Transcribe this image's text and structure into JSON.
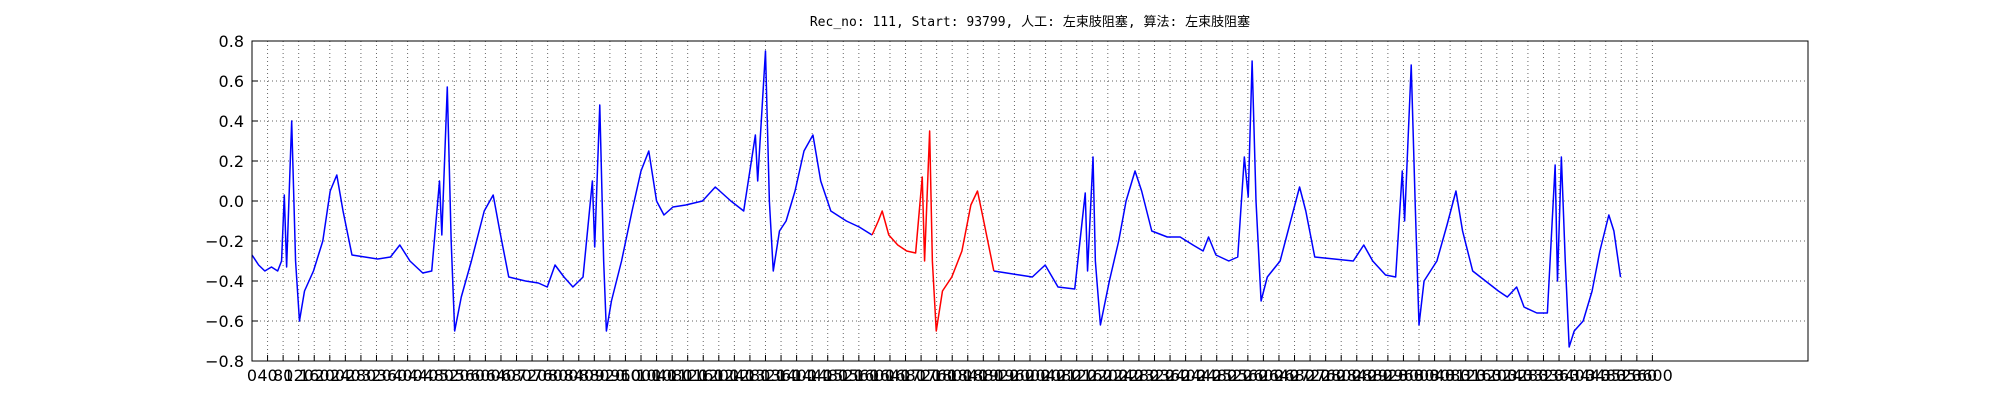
{
  "chart_data": {
    "type": "line",
    "title": "Rec_no: 111, Start: 93799, 人工: 左束肢阻塞, 算法: 左束肢阻塞",
    "xlim": [
      0,
      4000
    ],
    "ylim": [
      -0.8,
      0.8
    ],
    "grid": true,
    "xticks": [
      0,
      40,
      80,
      120,
      160,
      200,
      240,
      280,
      320,
      360,
      400,
      440,
      480,
      520,
      560,
      600,
      640,
      680,
      720,
      760,
      800,
      840,
      880,
      920,
      960,
      1000,
      1040,
      1080,
      1120,
      1160,
      1200,
      1240,
      1280,
      1320,
      1360,
      1400,
      1440,
      1480,
      1520,
      1560,
      1600,
      1640,
      1680,
      1720,
      1760,
      1800,
      1840,
      1880,
      1920,
      1960,
      2000,
      2040,
      2080,
      2120,
      2160,
      2200,
      2240,
      2280,
      2320,
      2360,
      2400,
      2440,
      2480,
      2520,
      2560,
      2600,
      2640,
      2680,
      2720,
      2760,
      2800,
      2840,
      2880,
      2920,
      2960,
      3000,
      3040,
      3080,
      3120,
      3160,
      3200,
      3240,
      3280,
      3320,
      3360,
      3400,
      3440,
      3480,
      3520,
      3560,
      3600
    ],
    "yticks": [
      0.8,
      0.6,
      0.4,
      0.2,
      {
        "value": 0,
        "label": "0.0"
      },
      {
        "value": -0.2,
        "label": "−0.2"
      },
      {
        "value": -0.4,
        "label": "−0.4"
      },
      {
        "value": -0.6,
        "label": "−0.6"
      },
      {
        "value": -0.8,
        "label": "−0.8"
      }
    ],
    "x": [
      0,
      17,
      33,
      50,
      66,
      76,
      83,
      89,
      102,
      112,
      122,
      135,
      158,
      182,
      201,
      218,
      234,
      257,
      290,
      323,
      356,
      380,
      406,
      439,
      462,
      482,
      488,
      502,
      512,
      521,
      538,
      564,
      597,
      620,
      637,
      660,
      703,
      736,
      759,
      779,
      802,
      825,
      851,
      875,
      881,
      894,
      904,
      911,
      924,
      950,
      977,
      1000,
      1020,
      1040,
      1059,
      1082,
      1115,
      1158,
      1191,
      1231,
      1264,
      1294,
      1300,
      1320,
      1330,
      1340,
      1356,
      1373,
      1396,
      1419,
      1442,
      1462,
      1488,
      1528,
      1561,
      1594,
      1610,
      1620,
      1637,
      1660,
      1683,
      1706,
      1723,
      1729,
      1742,
      1749,
      1759,
      1775,
      1799,
      1825,
      1848,
      1865,
      1881,
      1907,
      1940,
      1973,
      2006,
      2039,
      2072,
      2115,
      2142,
      2148,
      2162,
      2168,
      2181,
      2204,
      2228,
      2247,
      2270,
      2287,
      2313,
      2353,
      2386,
      2419,
      2445,
      2459,
      2478,
      2511,
      2534,
      2551,
      2561,
      2571,
      2581,
      2594,
      2610,
      2643,
      2670,
      2693,
      2709,
      2732,
      2782,
      2831,
      2858,
      2881,
      2914,
      2940,
      2957,
      2963,
      2980,
      2990,
      3000,
      3013,
      3046,
      3072,
      3095,
      3112,
      3138,
      3171,
      3204,
      3227,
      3251,
      3270,
      3303,
      3330,
      3350,
      3356,
      3366,
      3376,
      3386,
      3399,
      3422,
      3445,
      3465,
      3488,
      3501,
      3518
    ],
    "series": [
      {
        "color": "#0000ff",
        "values": [
          -0.27,
          -0.32,
          -0.35,
          -0.33,
          -0.35,
          -0.3,
          0.03,
          -0.33,
          0.4,
          -0.3,
          -0.6,
          -0.45,
          -0.35,
          -0.2,
          0.05,
          0.13,
          -0.05,
          -0.27,
          -0.28,
          -0.29,
          -0.28,
          -0.22,
          -0.3,
          -0.36,
          -0.35,
          0.1,
          -0.17,
          0.57,
          -0.2,
          -0.65,
          -0.48,
          -0.3,
          -0.05,
          0.03,
          -0.15,
          -0.38,
          -0.4,
          -0.41,
          -0.43,
          -0.32,
          -0.38,
          -0.43,
          -0.38,
          0.1,
          -0.23,
          0.48,
          -0.3,
          -0.65,
          -0.5,
          -0.3,
          -0.05,
          0.15,
          0.25,
          0.0,
          -0.07,
          -0.03,
          -0.02,
          0.0,
          0.07,
          0.0,
          -0.05,
          0.33,
          0.1,
          0.75,
          0.0,
          -0.35,
          -0.15,
          -0.1,
          0.05,
          0.25,
          0.33,
          0.1,
          -0.05,
          -0.1,
          -0.13,
          -0.17,
          null,
          null,
          null,
          null,
          null,
          null,
          null,
          null,
          null,
          null,
          null,
          null,
          null,
          null,
          null,
          null,
          null,
          -0.35,
          -0.36,
          -0.37,
          -0.38,
          -0.32,
          -0.43,
          -0.44,
          0.04,
          -0.35,
          0.22,
          -0.3,
          -0.62,
          -0.4,
          -0.2,
          0.0,
          0.15,
          0.05,
          -0.15,
          -0.18,
          -0.18,
          -0.22,
          -0.25,
          -0.18,
          -0.27,
          -0.3,
          -0.28,
          0.22,
          0.02,
          0.7,
          0.0,
          -0.5,
          -0.38,
          -0.3,
          -0.1,
          0.07,
          -0.05,
          -0.28,
          -0.29,
          -0.3,
          -0.22,
          -0.3,
          -0.37,
          -0.38,
          0.15,
          -0.1,
          0.68,
          0.0,
          -0.62,
          -0.4,
          -0.3,
          -0.12,
          0.05,
          -0.15,
          -0.35,
          -0.4,
          -0.45,
          -0.48,
          -0.43,
          -0.53,
          -0.56,
          -0.56,
          0.18,
          -0.4,
          0.22,
          -0.3,
          -0.73,
          -0.65,
          -0.6,
          -0.45,
          -0.25,
          -0.07,
          -0.15,
          -0.38
        ]
      },
      {
        "color": "#ff0000",
        "values": [
          null,
          null,
          null,
          null,
          null,
          null,
          null,
          null,
          null,
          null,
          null,
          null,
          null,
          null,
          null,
          null,
          null,
          null,
          null,
          null,
          null,
          null,
          null,
          null,
          null,
          null,
          null,
          null,
          null,
          null,
          null,
          null,
          null,
          null,
          null,
          null,
          null,
          null,
          null,
          null,
          null,
          null,
          null,
          null,
          null,
          null,
          null,
          null,
          null,
          null,
          null,
          null,
          null,
          null,
          null,
          null,
          null,
          null,
          null,
          null,
          null,
          null,
          null,
          null,
          null,
          null,
          null,
          null,
          null,
          null,
          null,
          null,
          null,
          null,
          null,
          -0.17,
          -0.1,
          -0.05,
          -0.17,
          -0.22,
          -0.25,
          -0.26,
          0.12,
          -0.3,
          0.35,
          -0.3,
          -0.65,
          -0.45,
          -0.38,
          -0.25,
          -0.02,
          0.05,
          -0.1,
          -0.35,
          null,
          null,
          null,
          null,
          null,
          null,
          null,
          null,
          null,
          null,
          null,
          null,
          null,
          null,
          null,
          null,
          null,
          null,
          null,
          null,
          null,
          null,
          null,
          null,
          null,
          null,
          null,
          null,
          null,
          null,
          null,
          null,
          null,
          null,
          null,
          null,
          null,
          null,
          null,
          null,
          null,
          null,
          null,
          null,
          null,
          null,
          null,
          null,
          null,
          null,
          null,
          null,
          null,
          null,
          null,
          null,
          null,
          null,
          null,
          null,
          null,
          null,
          null,
          null,
          null,
          null,
          null,
          null,
          null,
          null,
          null,
          null
        ]
      }
    ]
  }
}
